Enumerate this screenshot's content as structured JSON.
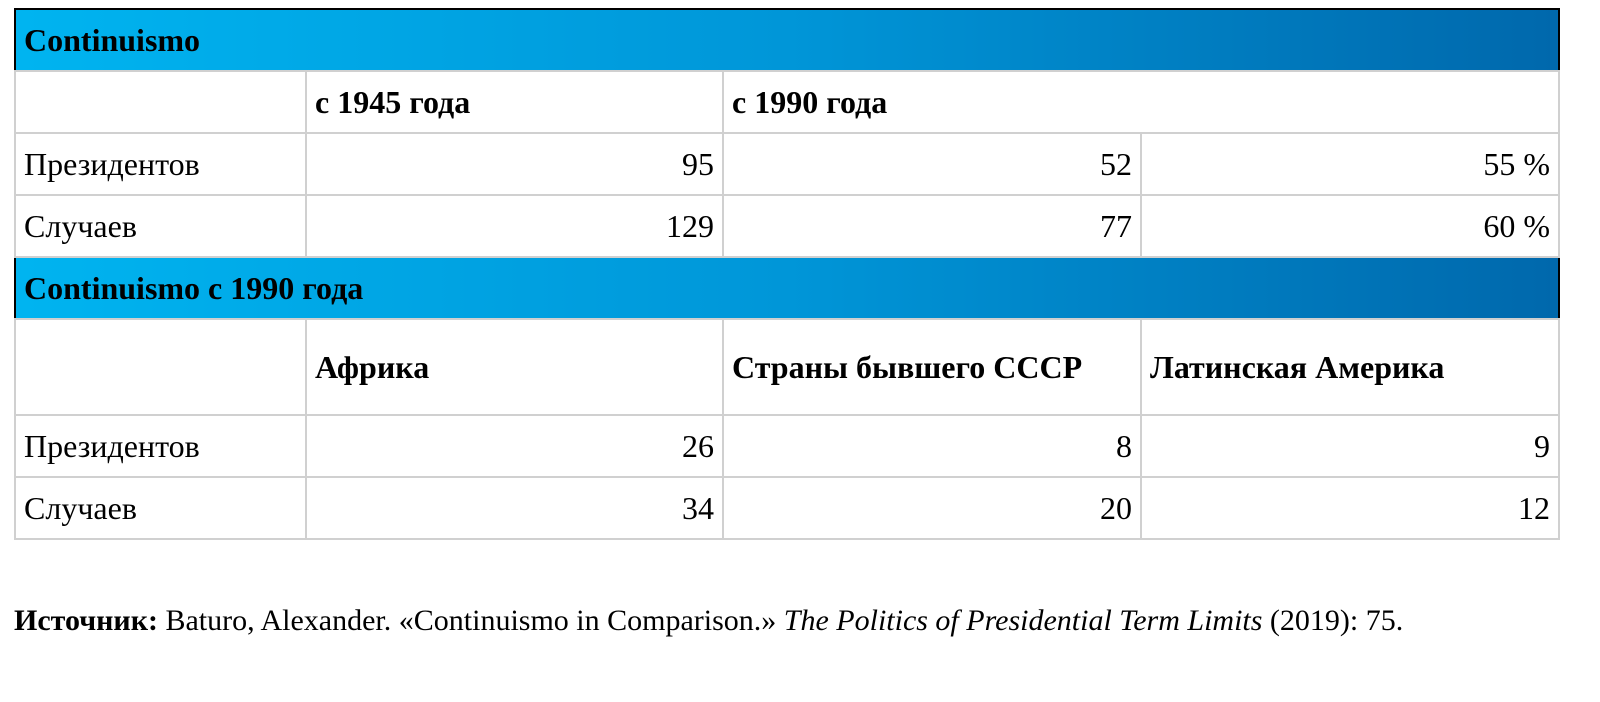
{
  "table": {
    "sections": [
      {
        "title": "Continuismo",
        "header": [
          "с 1945 года",
          "с 1990 года"
        ],
        "rows": [
          {
            "label": "Президентов",
            "values": [
              95,
              52,
              "55 %"
            ]
          },
          {
            "label": "Случаев",
            "values": [
              129,
              77,
              "60 %"
            ]
          }
        ]
      },
      {
        "title": "Continuismo с 1990 года",
        "header": [
          "Африка",
          "Страны бывшего СССР",
          "Латинская Америка"
        ],
        "rows": [
          {
            "label": "Президентов",
            "values": [
              26,
              8,
              9
            ]
          },
          {
            "label": "Случаев",
            "values": [
              34,
              20,
              12
            ]
          }
        ]
      }
    ]
  },
  "source": {
    "label": "Источник:",
    "text": "Baturo, Alexander. «Continuismo in Comparison.»",
    "title": "The Politics of Presidential Term Limits",
    "rest": "(2019): 75."
  }
}
